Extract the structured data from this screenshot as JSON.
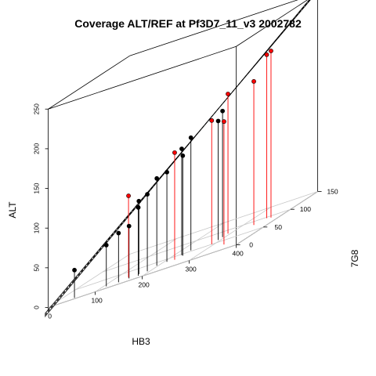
{
  "chart_data": {
    "type": "scatter",
    "title": "Coverage ALT/REF at Pf3D7_11_v3 2002782",
    "xlabel": "HB3",
    "ylabel": "7G8",
    "zlabel": "ALT",
    "x_ticks": [
      "0",
      "100",
      "200",
      "300",
      "400"
    ],
    "y_ticks": [
      "0",
      "50",
      "100",
      "150"
    ],
    "z_ticks": [
      "0",
      "50",
      "100",
      "150",
      "200",
      "250"
    ],
    "xlim": [
      0,
      400
    ],
    "ylim": [
      0,
      150
    ],
    "zlim": [
      0,
      250
    ],
    "projection": "3d-box",
    "regression_lines": 3,
    "series": [
      {
        "color": "#000000",
        "points": [
          {
            "x": 50,
            "y": 5,
            "z": 35
          },
          {
            "x": 112,
            "y": 10,
            "z": 52
          },
          {
            "x": 138,
            "y": 10,
            "z": 62
          },
          {
            "x": 158,
            "y": 12,
            "z": 66
          },
          {
            "x": 172,
            "y": 18,
            "z": 92
          },
          {
            "x": 180,
            "y": 10,
            "z": 86
          },
          {
            "x": 190,
            "y": 18,
            "z": 97
          },
          {
            "x": 194,
            "y": 32,
            "z": 110
          },
          {
            "x": 212,
            "y": 35,
            "z": 113
          },
          {
            "x": 232,
            "y": 45,
            "z": 134
          },
          {
            "x": 240,
            "y": 55,
            "z": 142
          },
          {
            "x": 240,
            "y": 40,
            "z": 126
          },
          {
            "x": 290,
            "y": 62,
            "z": 150
          },
          {
            "x": 290,
            "y": 70,
            "z": 159
          }
        ]
      },
      {
        "color": "#ff0000",
        "points": [
          {
            "x": 150,
            "y": 18,
            "z": 103
          },
          {
            "x": 232,
            "y": 32,
            "z": 135
          },
          {
            "x": 290,
            "y": 80,
            "z": 176
          },
          {
            "x": 290,
            "y": 50,
            "z": 156
          },
          {
            "x": 345,
            "y": 25,
            "z": 155
          },
          {
            "x": 345,
            "y": 80,
            "z": 181
          },
          {
            "x": 355,
            "y": 95,
            "z": 206
          },
          {
            "x": 370,
            "y": 90,
            "z": 210
          }
        ]
      }
    ]
  }
}
